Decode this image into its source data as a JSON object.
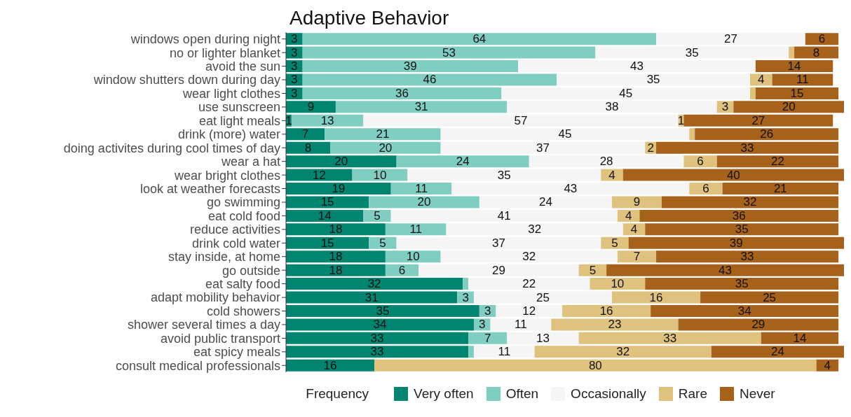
{
  "chart_data": {
    "type": "bar",
    "orientation": "horizontal",
    "stacked": true,
    "title": "Adaptive Behavior",
    "legend_title": "Frequency",
    "legend": "bottom",
    "grid": false,
    "tick_labels": "y",
    "categories": [
      "windows open during night",
      "no or lighter blanket",
      "avoid the sun",
      "window shutters down during day",
      "wear light clothes",
      "use sunscreen",
      "eat light meals",
      "drink (more) water",
      "doing activites during cool times of day",
      "wear a hat",
      "wear bright clothes",
      "look at weather forecasts",
      "go swimming",
      "eat cold food",
      "reduce activities",
      "drink cold water",
      "stay inside, at home",
      "go outside",
      "eat salty food",
      "adapt mobility behavior",
      "cold showers",
      "shower several times a day",
      "avoid public transport",
      "eat spicy meals",
      "consult medical professionals"
    ],
    "series": [
      {
        "name": "Very often",
        "color": "#018571",
        "values": [
          3,
          3,
          3,
          3,
          3,
          9,
          1,
          7,
          8,
          20,
          12,
          19,
          15,
          14,
          18,
          15,
          18,
          18,
          32,
          31,
          35,
          34,
          33,
          33,
          16
        ],
        "value_labels": [
          "3",
          "3",
          "3",
          "3",
          "3",
          "9",
          "1",
          "7",
          "8",
          "20",
          "12",
          "19",
          "15",
          "14",
          "18",
          "15",
          "18",
          "18",
          "32",
          "31",
          "35",
          "34",
          "33",
          "33",
          "16"
        ]
      },
      {
        "name": "Often",
        "color": "#80cdc1",
        "values": [
          64,
          53,
          39,
          46,
          36,
          31,
          13,
          21,
          20,
          24,
          10,
          11,
          20,
          5,
          11,
          5,
          10,
          6,
          1,
          3,
          3,
          3,
          7,
          1,
          null
        ],
        "value_labels": [
          "64",
          "53",
          "39",
          "46",
          "36",
          "31",
          "13",
          "21",
          "20",
          "24",
          "10",
          "11",
          "20",
          "5",
          "11",
          "5",
          "10",
          "6",
          null,
          "3",
          "3",
          "3",
          "7",
          null,
          null
        ]
      },
      {
        "name": "Occasionally",
        "color": "#f5f5f5",
        "values": [
          27,
          35,
          43,
          35,
          45,
          38,
          57,
          45,
          37,
          28,
          35,
          43,
          24,
          41,
          32,
          37,
          32,
          29,
          22,
          25,
          12,
          11,
          13,
          11,
          null
        ],
        "value_labels": [
          "27",
          "35",
          "43",
          "35",
          "45",
          "38",
          "57",
          "45",
          "37",
          "28",
          "35",
          "43",
          "24",
          "41",
          "32",
          "37",
          "32",
          "29",
          "22",
          "25",
          "12",
          "11",
          "13",
          "11",
          null
        ]
      },
      {
        "name": "Rare",
        "color": "#dfc27d",
        "values": [
          null,
          1,
          null,
          4,
          1,
          3,
          1,
          1,
          2,
          6,
          4,
          6,
          9,
          4,
          4,
          5,
          7,
          5,
          10,
          16,
          16,
          23,
          33,
          32,
          80
        ],
        "value_labels": [
          null,
          null,
          null,
          "4",
          null,
          "3",
          "1",
          null,
          "2",
          "6",
          "4",
          "6",
          "9",
          "4",
          "4",
          "5",
          "7",
          "5",
          "10",
          "16",
          "16",
          "23",
          "33",
          "32",
          "80"
        ]
      },
      {
        "name": "Never",
        "color": "#a6611a",
        "values": [
          6,
          8,
          14,
          11,
          15,
          20,
          27,
          26,
          33,
          22,
          40,
          21,
          32,
          36,
          35,
          39,
          33,
          43,
          35,
          25,
          34,
          29,
          14,
          24,
          4
        ],
        "value_labels": [
          "6",
          "8",
          "14",
          "11",
          "15",
          "20",
          "27",
          "26",
          "33",
          "22",
          "40",
          "21",
          "32",
          "36",
          "35",
          "39",
          "33",
          "43",
          "35",
          "25",
          "34",
          "29",
          "14",
          "24",
          "4"
        ]
      }
    ]
  }
}
